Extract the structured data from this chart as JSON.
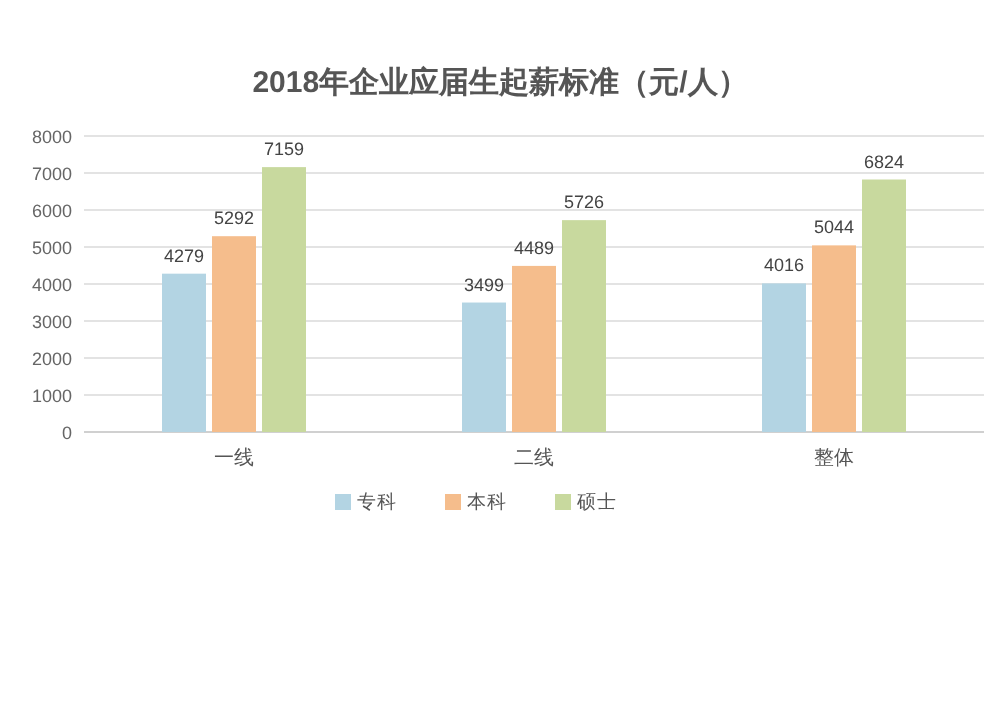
{
  "chart_data": {
    "type": "bar",
    "title": "2018年企业应届生起薪标准（元/人）",
    "categories": [
      "一线",
      "二线",
      "整体"
    ],
    "series": [
      {
        "name": "专科",
        "color": "#b3d4e3",
        "values": [
          4279,
          3499,
          4016
        ]
      },
      {
        "name": "本科",
        "color": "#f5bd8c",
        "values": [
          5292,
          4489,
          5044
        ]
      },
      {
        "name": "硕士",
        "color": "#c8d99e",
        "values": [
          7159,
          5726,
          6824
        ]
      }
    ],
    "ylim": [
      0,
      8000
    ],
    "yticks": [
      0,
      1000,
      2000,
      3000,
      4000,
      5000,
      6000,
      7000,
      8000
    ],
    "grid": "y",
    "legend": "bottom",
    "data_labels": true
  }
}
